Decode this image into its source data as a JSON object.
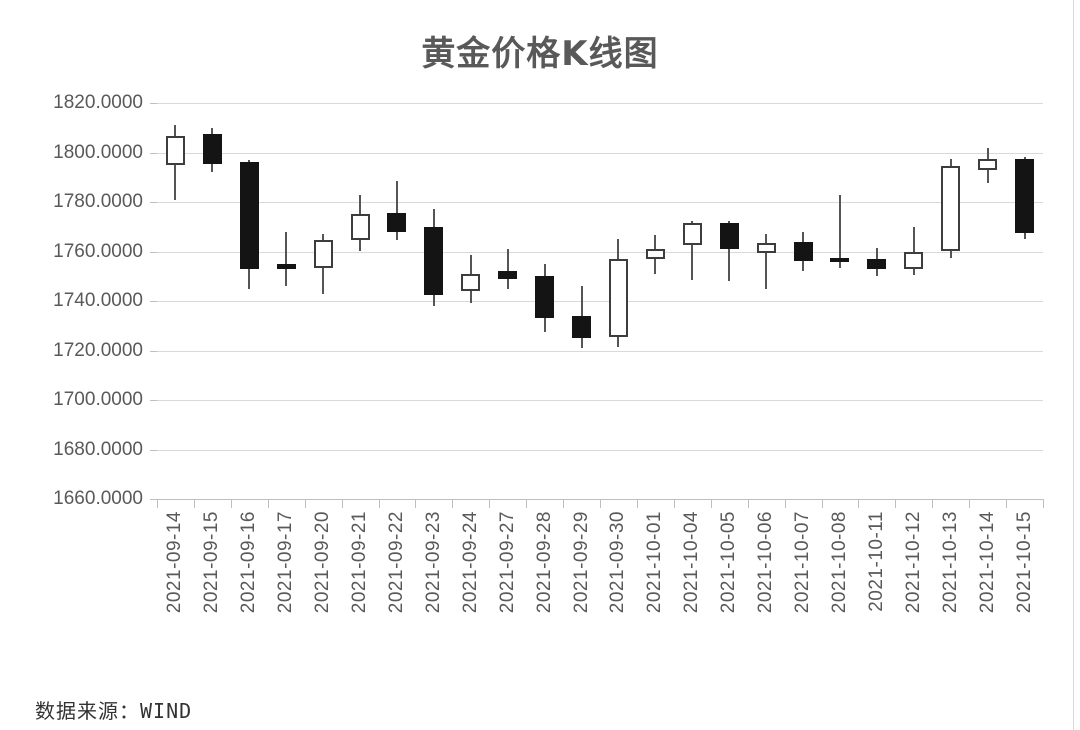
{
  "chart": {
    "footer_source": "数据来源：WIND"
  },
  "colors": {
    "up_body": "#ffffff",
    "up_border": "#3d3d3d",
    "down_body": "#141414",
    "wick": "#555555",
    "gridline": "#d9d9d9",
    "axis_line": "#bfbfbf",
    "axis_text": "#595959",
    "title_text": "#595959"
  },
  "chart_data": {
    "type": "candlestick",
    "title": "黄金价格K线图",
    "xlabel": "",
    "ylabel": "",
    "ylim": [
      1660,
      1820
    ],
    "ytick_step": 20,
    "ytick_decimals": 4,
    "grid": true,
    "legend": false,
    "x_label_rotation": -90,
    "up_style": "hollow-white",
    "down_style": "filled-black",
    "categories": [
      "2021-09-14",
      "2021-09-15",
      "2021-09-16",
      "2021-09-17",
      "2021-09-20",
      "2021-09-21",
      "2021-09-22",
      "2021-09-23",
      "2021-09-24",
      "2021-09-27",
      "2021-09-28",
      "2021-09-29",
      "2021-09-30",
      "2021-10-01",
      "2021-10-04",
      "2021-10-05",
      "2021-10-06",
      "2021-10-07",
      "2021-10-08",
      "2021-10-11",
      "2021-10-12",
      "2021-10-13",
      "2021-10-14",
      "2021-10-15"
    ],
    "series": [
      {
        "name": "黄金价格",
        "ohlc": [
          [
            1795.0,
            1811.0,
            1781.0,
            1806.5
          ],
          [
            1807.5,
            1810.0,
            1792.0,
            1795.5
          ],
          [
            1796.0,
            1797.0,
            1745.0,
            1753.0
          ],
          [
            1755.0,
            1768.0,
            1746.0,
            1753.0
          ],
          [
            1753.5,
            1767.0,
            1743.0,
            1764.5
          ],
          [
            1764.5,
            1783.0,
            1760.0,
            1775.0
          ],
          [
            1775.5,
            1788.5,
            1764.5,
            1768.0
          ],
          [
            1770.0,
            1777.0,
            1738.0,
            1742.5
          ],
          [
            1744.0,
            1758.5,
            1739.0,
            1751.0
          ],
          [
            1752.0,
            1761.0,
            1745.0,
            1749.0
          ],
          [
            1750.0,
            1755.0,
            1727.5,
            1733.0
          ],
          [
            1734.0,
            1746.0,
            1721.0,
            1725.0
          ],
          [
            1725.5,
            1765.0,
            1721.5,
            1757.0
          ],
          [
            1757.0,
            1766.5,
            1751.0,
            1761.0
          ],
          [
            1762.5,
            1772.5,
            1748.5,
            1771.5
          ],
          [
            1771.5,
            1772.5,
            1748.0,
            1761.0
          ],
          [
            1759.5,
            1767.0,
            1745.0,
            1763.5
          ],
          [
            1764.0,
            1768.0,
            1752.0,
            1756.0
          ],
          [
            1757.5,
            1783.0,
            1753.5,
            1756.5
          ],
          [
            1757.0,
            1761.5,
            1750.0,
            1753.0
          ],
          [
            1753.0,
            1770.0,
            1750.5,
            1760.0
          ],
          [
            1760.0,
            1797.5,
            1757.5,
            1794.5
          ],
          [
            1793.0,
            1802.0,
            1787.5,
            1797.5
          ],
          [
            1797.5,
            1798.0,
            1765.0,
            1767.5
          ]
        ]
      }
    ]
  }
}
